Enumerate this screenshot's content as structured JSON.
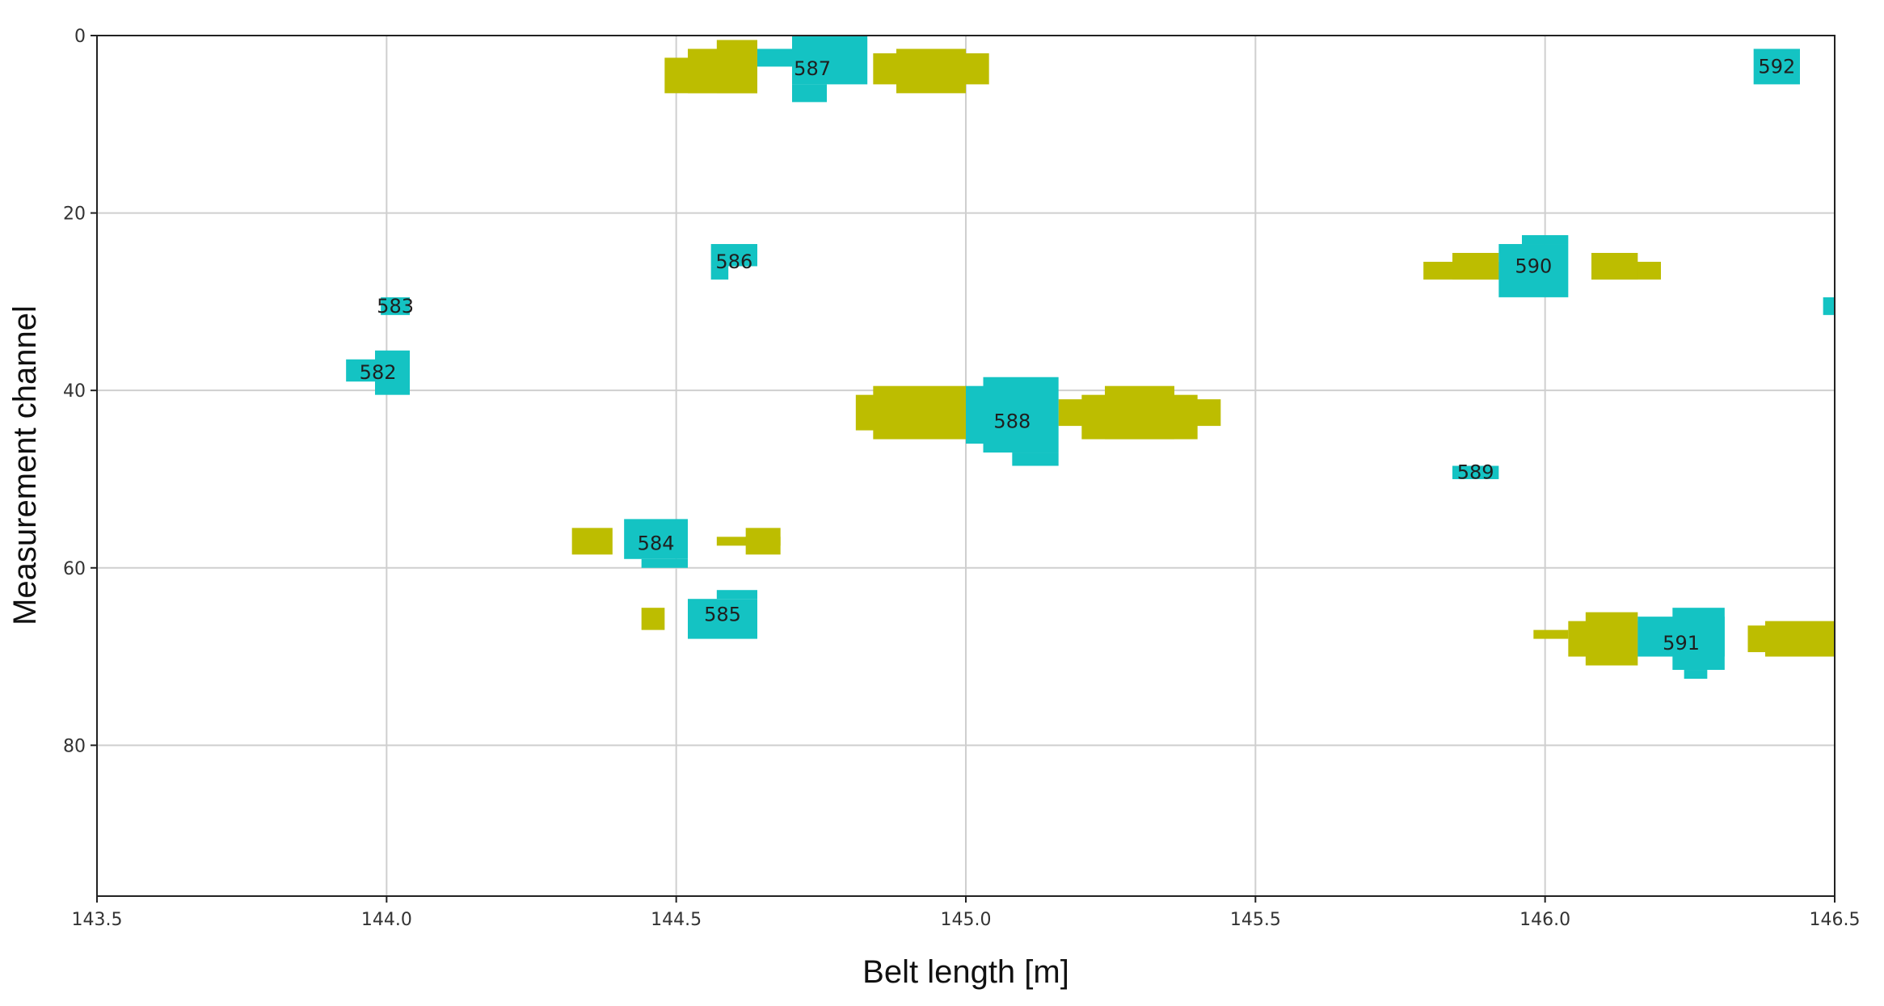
{
  "chart_data": {
    "type": "scatter",
    "xlabel": "Belt length [m]",
    "ylabel": "Measurement channel",
    "xlim": [
      143.5,
      146.5
    ],
    "ylim": [
      97,
      0
    ],
    "x_ticks": [
      143.5,
      144.0,
      144.5,
      145.0,
      145.5,
      146.0,
      146.5
    ],
    "x_tick_labels": [
      "143.5",
      "144.0",
      "144.5",
      "145.0",
      "145.5",
      "146.0",
      "146.5"
    ],
    "y_ticks": [
      0,
      20,
      40,
      60,
      80
    ],
    "y_tick_labels": [
      "0",
      "20",
      "40",
      "60",
      "80"
    ],
    "grid": true,
    "colors": {
      "labeled": "#14c3c3",
      "unlabeled": "#bdbd00"
    },
    "regions": [
      {
        "id": "582",
        "label": "582",
        "kind": "labeled",
        "rects": [
          [
            143.93,
            144.04,
            36.5,
            39
          ],
          [
            143.98,
            144.04,
            35.5,
            40.5
          ]
        ]
      },
      {
        "id": "583",
        "label": "583",
        "kind": "labeled",
        "rects": [
          [
            143.99,
            144.04,
            29.5,
            31.5
          ]
        ]
      },
      {
        "id": "584",
        "label": "584",
        "kind": "labeled",
        "rects": [
          [
            144.41,
            144.52,
            54.5,
            59
          ],
          [
            144.44,
            144.52,
            59,
            60
          ]
        ]
      },
      {
        "id": "585",
        "label": "585",
        "kind": "labeled",
        "rects": [
          [
            144.52,
            144.64,
            63.5,
            68
          ],
          [
            144.57,
            144.64,
            62.5,
            63.5
          ]
        ]
      },
      {
        "id": "586",
        "label": "586",
        "kind": "labeled",
        "rects": [
          [
            144.56,
            144.64,
            23.5,
            26
          ],
          [
            144.56,
            144.59,
            26,
            27.5
          ]
        ]
      },
      {
        "id": "587",
        "label": "587",
        "kind": "labeled",
        "rects": [
          [
            144.64,
            144.7,
            1.5,
            3.5
          ],
          [
            144.7,
            144.83,
            0,
            5.5
          ],
          [
            144.7,
            144.76,
            5.5,
            7.5
          ]
        ]
      },
      {
        "id": "588",
        "label": "588",
        "kind": "labeled",
        "rects": [
          [
            145.0,
            145.08,
            39.5,
            46
          ],
          [
            145.03,
            145.16,
            38.5,
            47
          ],
          [
            145.08,
            145.16,
            47,
            48.5
          ]
        ]
      },
      {
        "id": "589",
        "label": "589",
        "kind": "labeled",
        "rects": [
          [
            145.84,
            145.92,
            48.5,
            50
          ]
        ]
      },
      {
        "id": "590",
        "label": "590",
        "kind": "labeled",
        "rects": [
          [
            145.92,
            146.04,
            23.5,
            29.5
          ],
          [
            145.96,
            146.04,
            22.5,
            23.5
          ]
        ]
      },
      {
        "id": "591",
        "label": "591",
        "kind": "labeled",
        "rects": [
          [
            146.16,
            146.31,
            65.5,
            70
          ],
          [
            146.22,
            146.31,
            64.5,
            71.5
          ],
          [
            146.24,
            146.28,
            71.5,
            72.5
          ]
        ]
      },
      {
        "id": "592",
        "label": "592",
        "kind": "labeled",
        "rects": [
          [
            146.36,
            146.44,
            1.5,
            5.5
          ]
        ]
      },
      {
        "id": "edge",
        "label": "",
        "kind": "labeled",
        "rects": [
          [
            146.48,
            146.5,
            29.5,
            31.5
          ]
        ]
      },
      {
        "id": "y1",
        "label": "",
        "kind": "unlabeled",
        "rects": [
          [
            144.48,
            144.64,
            2.5,
            6.5
          ],
          [
            144.52,
            144.64,
            1.5,
            6.5
          ],
          [
            144.57,
            144.64,
            0.5,
            6.5
          ]
        ]
      },
      {
        "id": "y2",
        "label": "",
        "kind": "unlabeled",
        "rects": [
          [
            144.84,
            145.04,
            2,
            5.5
          ],
          [
            144.88,
            145.0,
            1.5,
            6.5
          ]
        ]
      },
      {
        "id": "y3",
        "label": "",
        "kind": "unlabeled",
        "rects": [
          [
            144.32,
            144.39,
            55.5,
            58.5
          ]
        ]
      },
      {
        "id": "y4",
        "label": "",
        "kind": "unlabeled",
        "rects": [
          [
            144.57,
            144.68,
            56.5,
            57.5
          ],
          [
            144.62,
            144.68,
            55.5,
            58.5
          ]
        ]
      },
      {
        "id": "y5",
        "label": "",
        "kind": "unlabeled",
        "rects": [
          [
            144.44,
            144.48,
            64.5,
            67
          ]
        ]
      },
      {
        "id": "y6",
        "label": "",
        "kind": "unlabeled",
        "rects": [
          [
            144.81,
            145.0,
            40.5,
            44.5
          ],
          [
            144.84,
            145.0,
            39.5,
            45.5
          ]
        ]
      },
      {
        "id": "y7",
        "label": "",
        "kind": "unlabeled",
        "rects": [
          [
            145.16,
            145.44,
            41,
            44
          ],
          [
            145.2,
            145.4,
            40.5,
            45.5
          ],
          [
            145.24,
            145.36,
            39.5,
            45.5
          ]
        ]
      },
      {
        "id": "y8",
        "label": "",
        "kind": "unlabeled",
        "rects": [
          [
            145.79,
            145.92,
            25.5,
            27.5
          ],
          [
            145.84,
            145.92,
            24.5,
            27.5
          ]
        ]
      },
      {
        "id": "y9",
        "label": "",
        "kind": "unlabeled",
        "rects": [
          [
            146.08,
            146.2,
            25.5,
            27.5
          ],
          [
            146.08,
            146.16,
            24.5,
            27.5
          ]
        ]
      },
      {
        "id": "y10",
        "label": "",
        "kind": "unlabeled",
        "rects": [
          [
            145.98,
            146.04,
            67,
            68
          ],
          [
            146.04,
            146.16,
            66,
            70
          ],
          [
            146.07,
            146.16,
            65,
            71
          ]
        ]
      },
      {
        "id": "y11",
        "label": "",
        "kind": "unlabeled",
        "rects": [
          [
            146.35,
            146.5,
            66.5,
            69.5
          ],
          [
            146.38,
            146.5,
            66,
            70
          ]
        ]
      }
    ]
  }
}
